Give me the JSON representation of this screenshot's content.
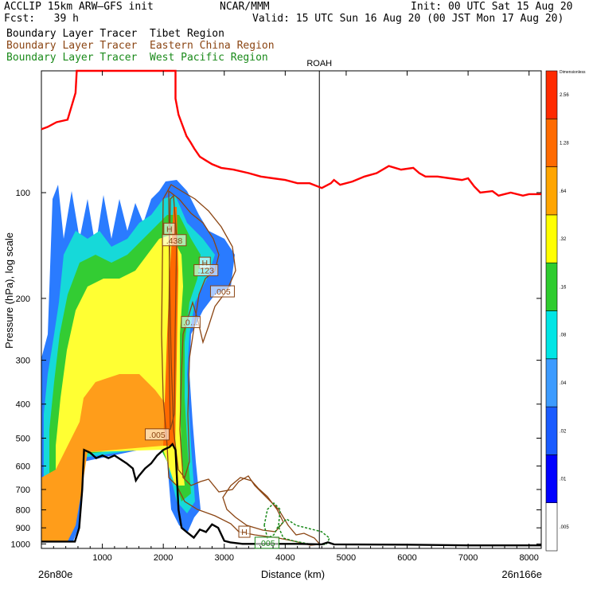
{
  "header": {
    "model": "ACCLIP 15km ARW–GFS init",
    "fcst": "Fcst:   39 h",
    "org": "NCAR/MMM",
    "init": "Init: 00 UTC Sat 15 Aug 20",
    "valid": "Valid: 15 UTC Sun 16 Aug 20 (00 JST Mon 17 Aug 20)"
  },
  "legend": [
    {
      "label": "Boundary Layer Tracer  Tibet Region",
      "color": "#000000"
    },
    {
      "label": "Boundary Layer Tracer  Eastern China Region",
      "color": "#8b4513"
    },
    {
      "label": "Boundary Layer Tracer  West Pacific Region",
      "color": "#1a8a1a"
    }
  ],
  "chart_data": {
    "type": "cross-section",
    "xlabel": "Distance (km)",
    "ylabel": "Pressure (hPa), log scale",
    "xlim": [
      0,
      8200
    ],
    "ylim": [
      1030,
      45
    ],
    "x_ticks": [
      1000,
      2000,
      3000,
      4000,
      5000,
      6000,
      7000,
      8000
    ],
    "y_ticks": [
      100,
      200,
      300,
      400,
      500,
      600,
      700,
      800,
      900,
      1000
    ],
    "start_label": "26n80e",
    "end_label": "26n166e",
    "marker": {
      "label": "ROAH",
      "x": 4560
    },
    "colorbar": {
      "title": "Dimensionless",
      "levels": [
        ".005",
        ".01",
        ".02",
        ".04",
        ".08",
        ".16",
        ".32",
        ".64",
        "1.28",
        "2.56"
      ],
      "colors": [
        "#ffffff",
        "#0000ff",
        "#1a5bff",
        "#3c9bff",
        "#00e5e5",
        "#2ecc2e",
        "#ffff00",
        "#ffa500",
        "#ff6a00",
        "#ff2a00"
      ]
    },
    "tropopause": {
      "color": "#ff0000",
      "points": [
        [
          0,
          66
        ],
        [
          100,
          65
        ],
        [
          250,
          63
        ],
        [
          430,
          62
        ],
        [
          560,
          52
        ],
        [
          580,
          45
        ],
        [
          2200,
          45
        ],
        [
          2200,
          54
        ],
        [
          2250,
          60
        ],
        [
          2310,
          64
        ],
        [
          2380,
          69
        ],
        [
          2450,
          72
        ],
        [
          2510,
          75
        ],
        [
          2600,
          79
        ],
        [
          2700,
          81
        ],
        [
          2800,
          83
        ],
        [
          2950,
          85
        ],
        [
          3150,
          86
        ],
        [
          3400,
          88
        ],
        [
          3600,
          90
        ],
        [
          3800,
          91
        ],
        [
          4000,
          92
        ],
        [
          4200,
          94
        ],
        [
          4400,
          94
        ],
        [
          4600,
          97
        ],
        [
          4750,
          94
        ],
        [
          4800,
          92
        ],
        [
          4900,
          95
        ],
        [
          5100,
          93
        ],
        [
          5300,
          90
        ],
        [
          5500,
          88
        ],
        [
          5700,
          84
        ],
        [
          5900,
          86
        ],
        [
          6100,
          85
        ],
        [
          6200,
          88
        ],
        [
          6300,
          90
        ],
        [
          6500,
          90
        ],
        [
          6700,
          91
        ],
        [
          6900,
          92
        ],
        [
          7000,
          91
        ],
        [
          7100,
          96
        ],
        [
          7200,
          100
        ],
        [
          7400,
          99
        ],
        [
          7500,
          102
        ],
        [
          7700,
          100
        ],
        [
          7900,
          102
        ],
        [
          8000,
          101
        ],
        [
          8200,
          101
        ]
      ]
    },
    "terrain": {
      "color": "#000000",
      "points": [
        [
          0,
          985
        ],
        [
          300,
          985
        ],
        [
          550,
          985
        ],
        [
          620,
          900
        ],
        [
          670,
          700
        ],
        [
          700,
          540
        ],
        [
          800,
          550
        ],
        [
          900,
          570
        ],
        [
          1000,
          560
        ],
        [
          1100,
          570
        ],
        [
          1200,
          560
        ],
        [
          1300,
          575
        ],
        [
          1400,
          590
        ],
        [
          1500,
          610
        ],
        [
          1550,
          660
        ],
        [
          1600,
          640
        ],
        [
          1700,
          610
        ],
        [
          1800,
          590
        ],
        [
          1900,
          560
        ],
        [
          2000,
          540
        ],
        [
          2100,
          530
        ],
        [
          2150,
          520
        ],
        [
          2200,
          540
        ],
        [
          2250,
          800
        ],
        [
          2300,
          900
        ],
        [
          2400,
          930
        ],
        [
          2500,
          960
        ],
        [
          2600,
          910
        ],
        [
          2700,
          925
        ],
        [
          2800,
          880
        ],
        [
          2900,
          900
        ],
        [
          3000,
          980
        ],
        [
          3100,
          990
        ],
        [
          3300,
          1000
        ],
        [
          3500,
          1000
        ],
        [
          3800,
          1000
        ],
        [
          4200,
          1000
        ],
        [
          4600,
          1003
        ],
        [
          4700,
          990
        ],
        [
          4800,
          1003
        ],
        [
          6000,
          1005
        ],
        [
          7000,
          1010
        ],
        [
          8200,
          1010
        ]
      ]
    },
    "labels": [
      {
        "text": "H",
        "x": 2100,
        "y": 128,
        "color": "#8b4513"
      },
      {
        "text": ".438",
        "x": 2180,
        "y": 138,
        "color": "#8b4513"
      },
      {
        "text": "H",
        "x": 2680,
        "y": 160,
        "color": "#8b4513"
      },
      {
        "text": ".123",
        "x": 2700,
        "y": 168,
        "color": "#8b4513"
      },
      {
        "text": ".005",
        "x": 2970,
        "y": 193,
        "color": "#8b4513"
      },
      {
        "text": ".0…",
        "x": 2450,
        "y": 236,
        "color": "#8b4513"
      },
      {
        "text": ".005",
        "x": 1900,
        "y": 493,
        "color": "#8b4513"
      },
      {
        "text": "H",
        "x": 3330,
        "y": 933,
        "color": "#8b4513"
      },
      {
        "text": ".005",
        "x": 3700,
        "y": 1003,
        "color": "#1a8a1a"
      }
    ]
  }
}
